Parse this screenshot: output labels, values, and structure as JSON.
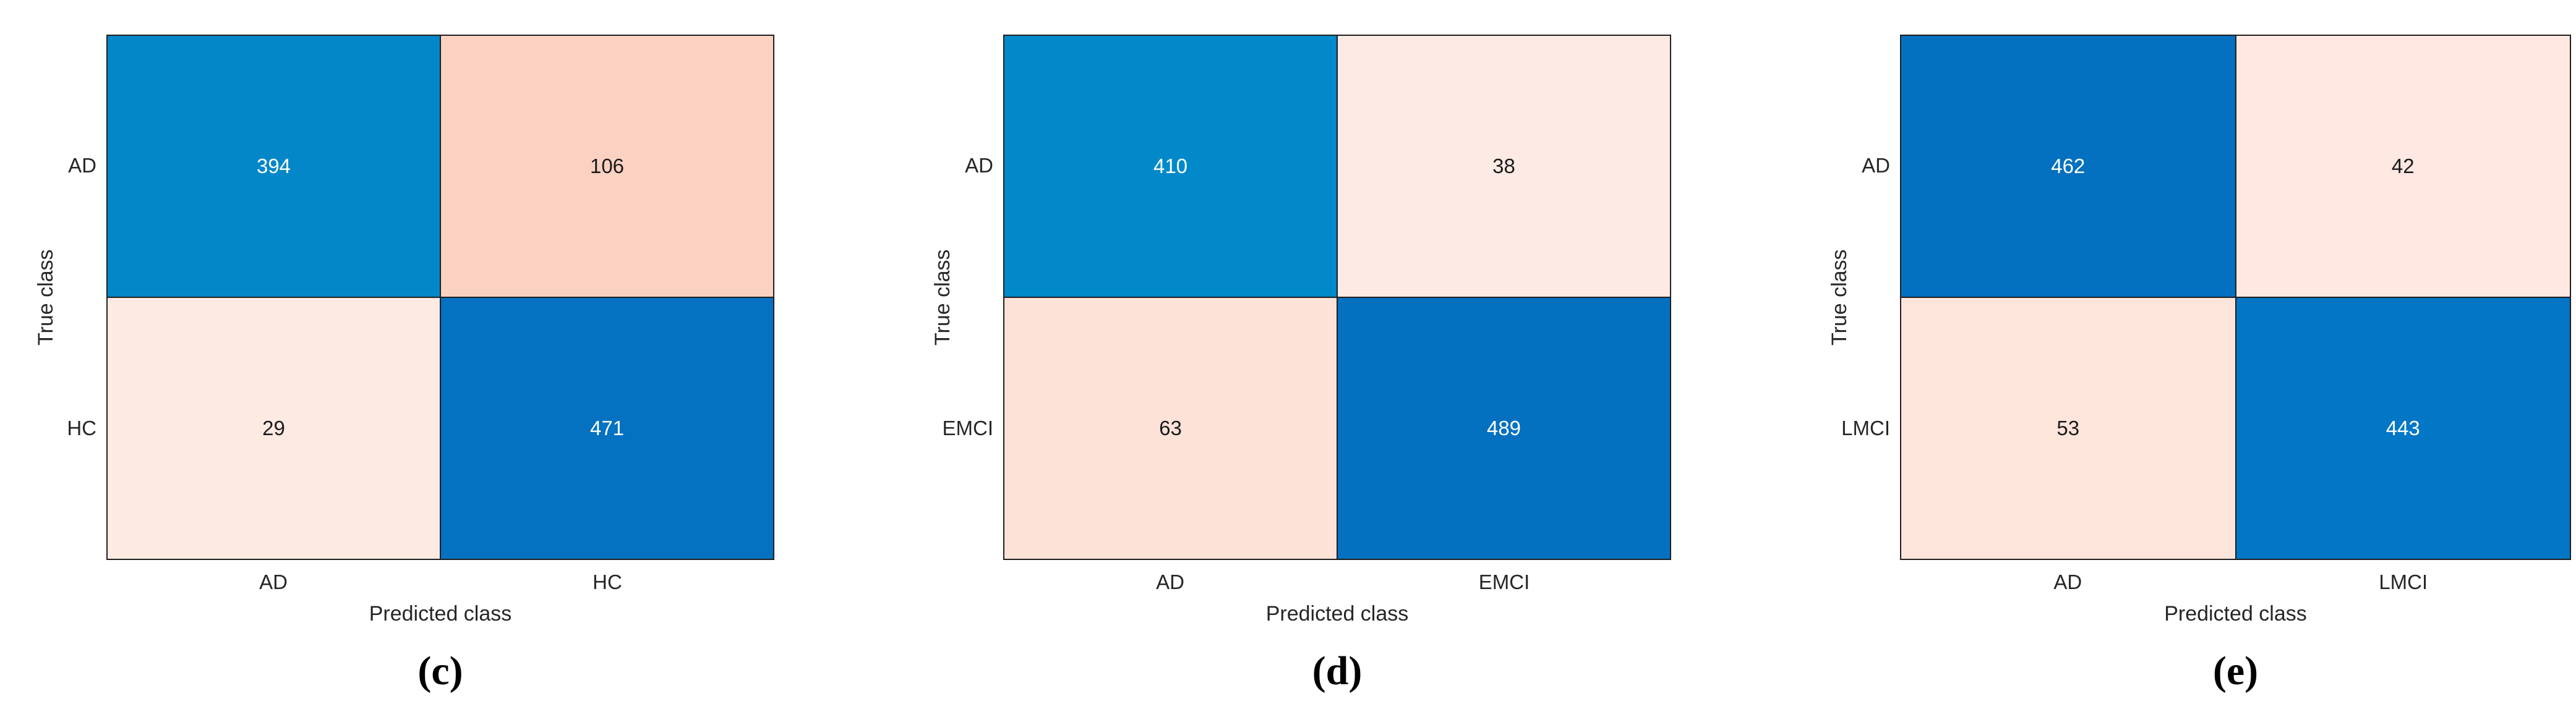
{
  "chart_data": [
    {
      "type": "heatmap",
      "title": "(c)",
      "xlabel": "Predicted class",
      "ylabel": "True class",
      "x_categories": [
        "AD",
        "HC"
      ],
      "y_categories": [
        "AD",
        "HC"
      ],
      "values": [
        [
          394,
          106
        ],
        [
          29,
          471
        ]
      ],
      "cell_colors": [
        [
          "#0487c8",
          "#fbd2c2"
        ],
        [
          "#fdeae3",
          "#0471c1"
        ]
      ],
      "cell_text_colors": [
        [
          "#ffffff",
          "#1a1a1a"
        ],
        [
          "#1a1a1a",
          "#ffffff"
        ]
      ],
      "legend": "none",
      "grid": "off"
    },
    {
      "type": "heatmap",
      "title": "(d)",
      "xlabel": "Predicted class",
      "ylabel": "True class",
      "x_categories": [
        "AD",
        "EMCI"
      ],
      "y_categories": [
        "AD",
        "EMCI"
      ],
      "values": [
        [
          410,
          38
        ],
        [
          63,
          489
        ]
      ],
      "cell_colors": [
        [
          "#0289ca",
          "#fdeae4"
        ],
        [
          "#fce2d7",
          "#0470c0"
        ]
      ],
      "cell_text_colors": [
        [
          "#ffffff",
          "#1a1a1a"
        ],
        [
          "#1a1a1a",
          "#ffffff"
        ]
      ],
      "legend": "none",
      "grid": "off"
    },
    {
      "type": "heatmap",
      "title": "(e)",
      "xlabel": "Predicted class",
      "ylabel": "True class",
      "x_categories": [
        "AD",
        "LMCI"
      ],
      "y_categories": [
        "AD",
        "LMCI"
      ],
      "values": [
        [
          462,
          42
        ],
        [
          53,
          443
        ]
      ],
      "cell_colors": [
        [
          "#0370c0",
          "#fee8e1"
        ],
        [
          "#fee5db",
          "#0377c5"
        ]
      ],
      "cell_text_colors": [
        [
          "#ffffff",
          "#1a1a1a"
        ],
        [
          "#1a1a1a",
          "#ffffff"
        ]
      ],
      "legend": "none",
      "grid": "off"
    }
  ],
  "colors": {
    "matrix_border": "#1f1f1f",
    "axis_text": "#262626",
    "caption_text": "#000000"
  }
}
